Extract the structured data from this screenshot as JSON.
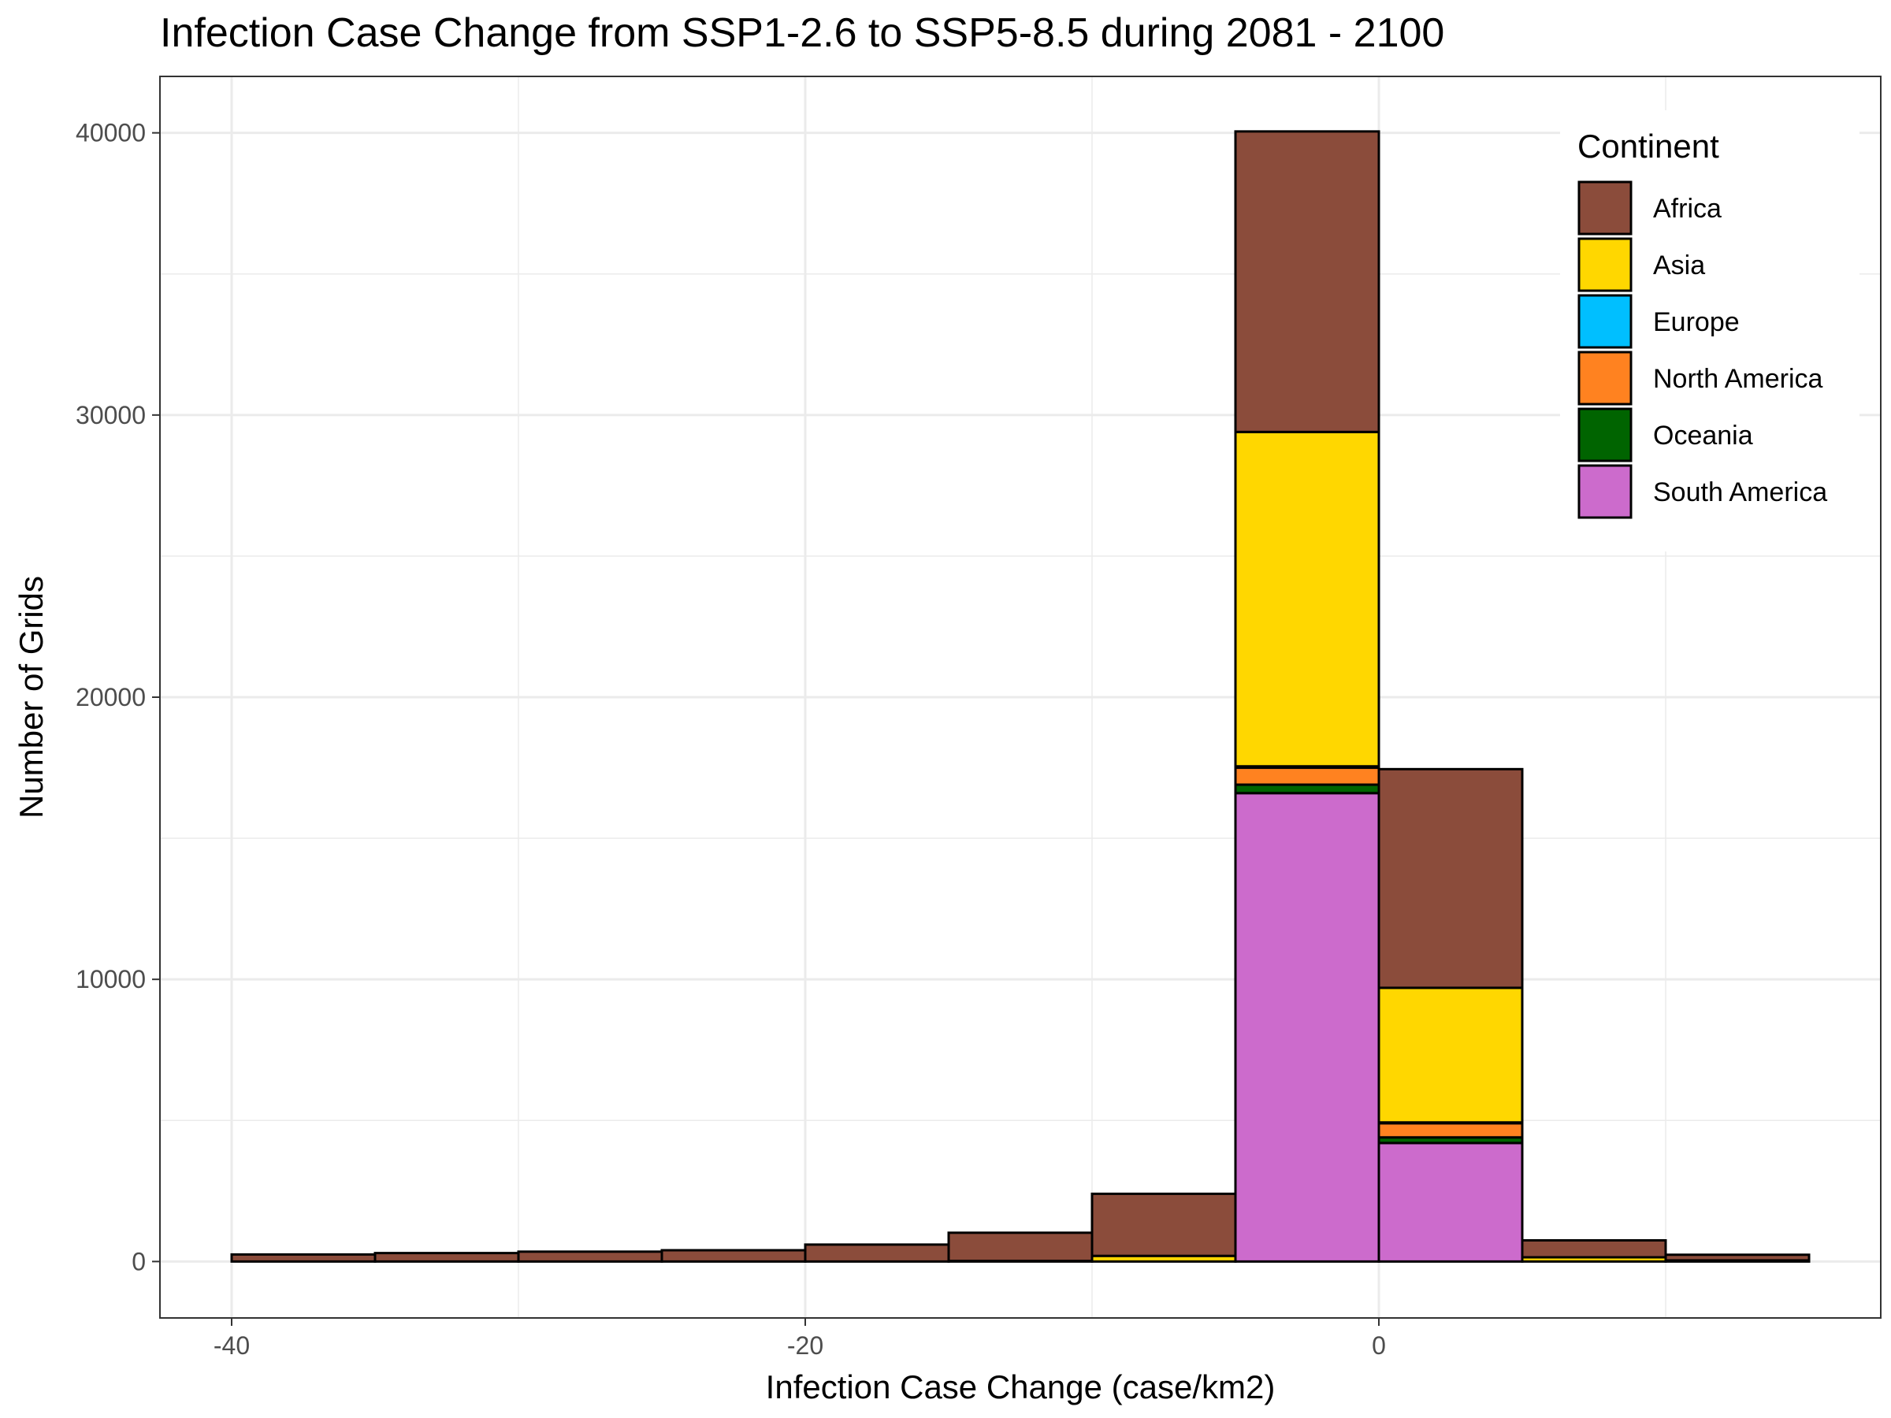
{
  "title": "Infection Case Change from SSP1-2.6 to SSP5-8.5 during 2081 - 2100",
  "colors": {
    "Africa": "#8B4C3B",
    "Asia": "#FFD700",
    "Europe": "#00BFFF",
    "North America": "#FF8220",
    "Oceania": "#006400",
    "South America": "#CC6BCC"
  },
  "chart_data": {
    "type": "bar",
    "subtype": "stacked-histogram",
    "xlabel": "Infection Case Change (case/km2)",
    "ylabel": "Number of Grids",
    "xlim": [
      -42.5,
      17.5
    ],
    "ylim": [
      -2000,
      42000
    ],
    "x_ticks": [
      -40,
      -20,
      0
    ],
    "y_ticks": [
      0,
      10000,
      20000,
      30000,
      40000
    ],
    "grid": true,
    "bin_edges": [
      -40,
      -35,
      -30,
      -25,
      -20,
      -15,
      -10,
      -5,
      0,
      5,
      10,
      15
    ],
    "legend": {
      "title": "Continent",
      "position": "top-right"
    },
    "series": [
      {
        "name": "South America",
        "values": [
          0,
          0,
          0,
          0,
          0,
          0,
          0,
          16600,
          4200,
          0,
          0
        ]
      },
      {
        "name": "Oceania",
        "values": [
          0,
          0,
          0,
          0,
          0,
          0,
          0,
          300,
          200,
          0,
          0
        ]
      },
      {
        "name": "North America",
        "values": [
          0,
          0,
          0,
          0,
          0,
          0,
          0,
          600,
          500,
          0,
          0
        ]
      },
      {
        "name": "Europe",
        "values": [
          0,
          0,
          0,
          0,
          0,
          0,
          0,
          50,
          30,
          0,
          0
        ]
      },
      {
        "name": "Asia",
        "values": [
          0,
          0,
          0,
          0,
          0,
          20,
          200,
          11850,
          4770,
          150,
          40
        ]
      },
      {
        "name": "Africa",
        "values": [
          250,
          300,
          350,
          400,
          600,
          1000,
          2200,
          10650,
          7750,
          600,
          200
        ]
      }
    ]
  }
}
